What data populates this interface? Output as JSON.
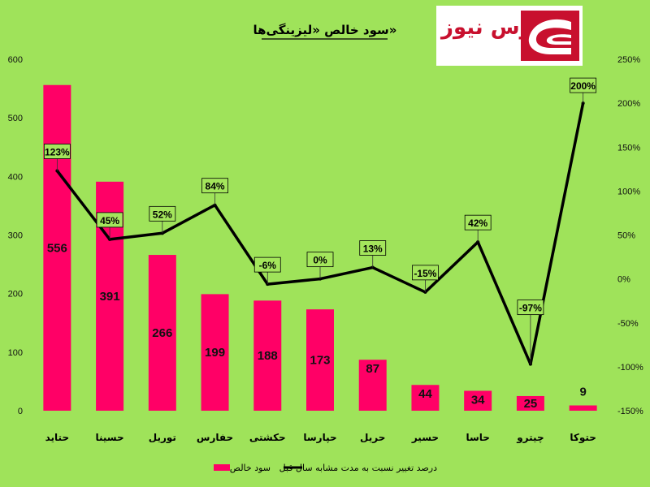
{
  "brand": {
    "name": "بورس نیوز",
    "color": "#c8102e",
    "icon": "bourse-news-logo-icon"
  },
  "chart_data": {
    "type": "bar",
    "title": "سود خالص «لیزینگی‌ها»",
    "categories": [
      "حتاید",
      "حسینا",
      "توریل",
      "حفارس",
      "حکشتی",
      "حپارسا",
      "حریل",
      "حسیر",
      "حاسا",
      "چیترو",
      "حتوکا"
    ],
    "series": [
      {
        "name": "سود خالص",
        "type": "bar",
        "axis": "left",
        "color": "#ff0066",
        "values": [
          556,
          391,
          266,
          199,
          188,
          173,
          87,
          44,
          34,
          25,
          9
        ],
        "value_labels": [
          "556",
          "391",
          "266",
          "199",
          "188",
          "173",
          "87",
          "44",
          "34",
          "25",
          "9"
        ]
      },
      {
        "name": "درصد تغییر نسبت به مدت مشابه سال قبل",
        "type": "line",
        "axis": "right",
        "color": "#000000",
        "values": [
          123,
          45,
          52,
          84,
          -6,
          0,
          13,
          -15,
          42,
          -97,
          200
        ],
        "value_labels": [
          "123%",
          "45%",
          "52%",
          "84%",
          "-6%",
          "0%",
          "13%",
          "-15%",
          "42%",
          "-97%",
          "200%"
        ]
      }
    ],
    "y_left": {
      "min": 0,
      "max": 600,
      "ticks": [
        "0",
        "100",
        "200",
        "300",
        "400",
        "500",
        "600"
      ]
    },
    "y_right": {
      "min": -150,
      "max": 250,
      "ticks": [
        "-150%",
        "-100%",
        "-50%",
        "0%",
        "50%",
        "100%",
        "150%",
        "200%",
        "250%"
      ]
    },
    "grid": false,
    "legend": "bottom",
    "background": "#9fe35a"
  }
}
